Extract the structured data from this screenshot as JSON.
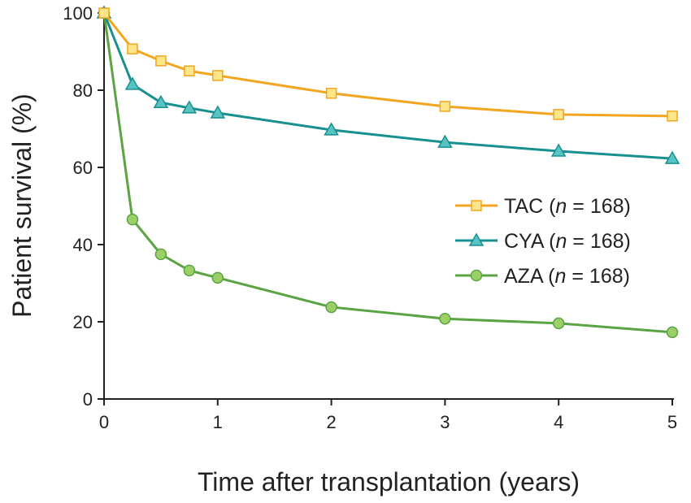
{
  "chart_data": {
    "type": "line",
    "title": "",
    "xlabel": "Time after transplantation (years)",
    "ylabel": "Patient survival (%)",
    "xlim": [
      0,
      5
    ],
    "ylim": [
      0,
      100
    ],
    "xticks": [
      0,
      1,
      2,
      3,
      4,
      5
    ],
    "yticks": [
      0,
      20,
      40,
      60,
      80,
      100
    ],
    "grid": false,
    "legend_position": "center-right",
    "x": [
      0,
      0.25,
      0.5,
      0.75,
      1,
      2,
      3,
      4,
      5
    ],
    "series": [
      {
        "name": "TAC",
        "n_label": "n",
        "n_value": "168",
        "marker": "square",
        "line_color": "#f3a51f",
        "fill_color": "#fde58a",
        "values": [
          100,
          90.7,
          87.6,
          85.0,
          83.8,
          79.2,
          75.8,
          73.7,
          73.3
        ]
      },
      {
        "name": "CYA",
        "n_label": "n",
        "n_value": "168",
        "marker": "triangle",
        "line_color": "#17908f",
        "fill_color": "#58c3c2",
        "values": [
          100,
          81.5,
          76.8,
          75.4,
          74.1,
          69.7,
          66.5,
          64.2,
          62.3
        ]
      },
      {
        "name": "AZA",
        "n_label": "n",
        "n_value": "168",
        "marker": "circle",
        "line_color": "#5ba443",
        "fill_color": "#9bcf68",
        "values": [
          100,
          46.5,
          37.5,
          33.3,
          31.4,
          23.8,
          20.8,
          19.6,
          17.3
        ]
      }
    ]
  }
}
